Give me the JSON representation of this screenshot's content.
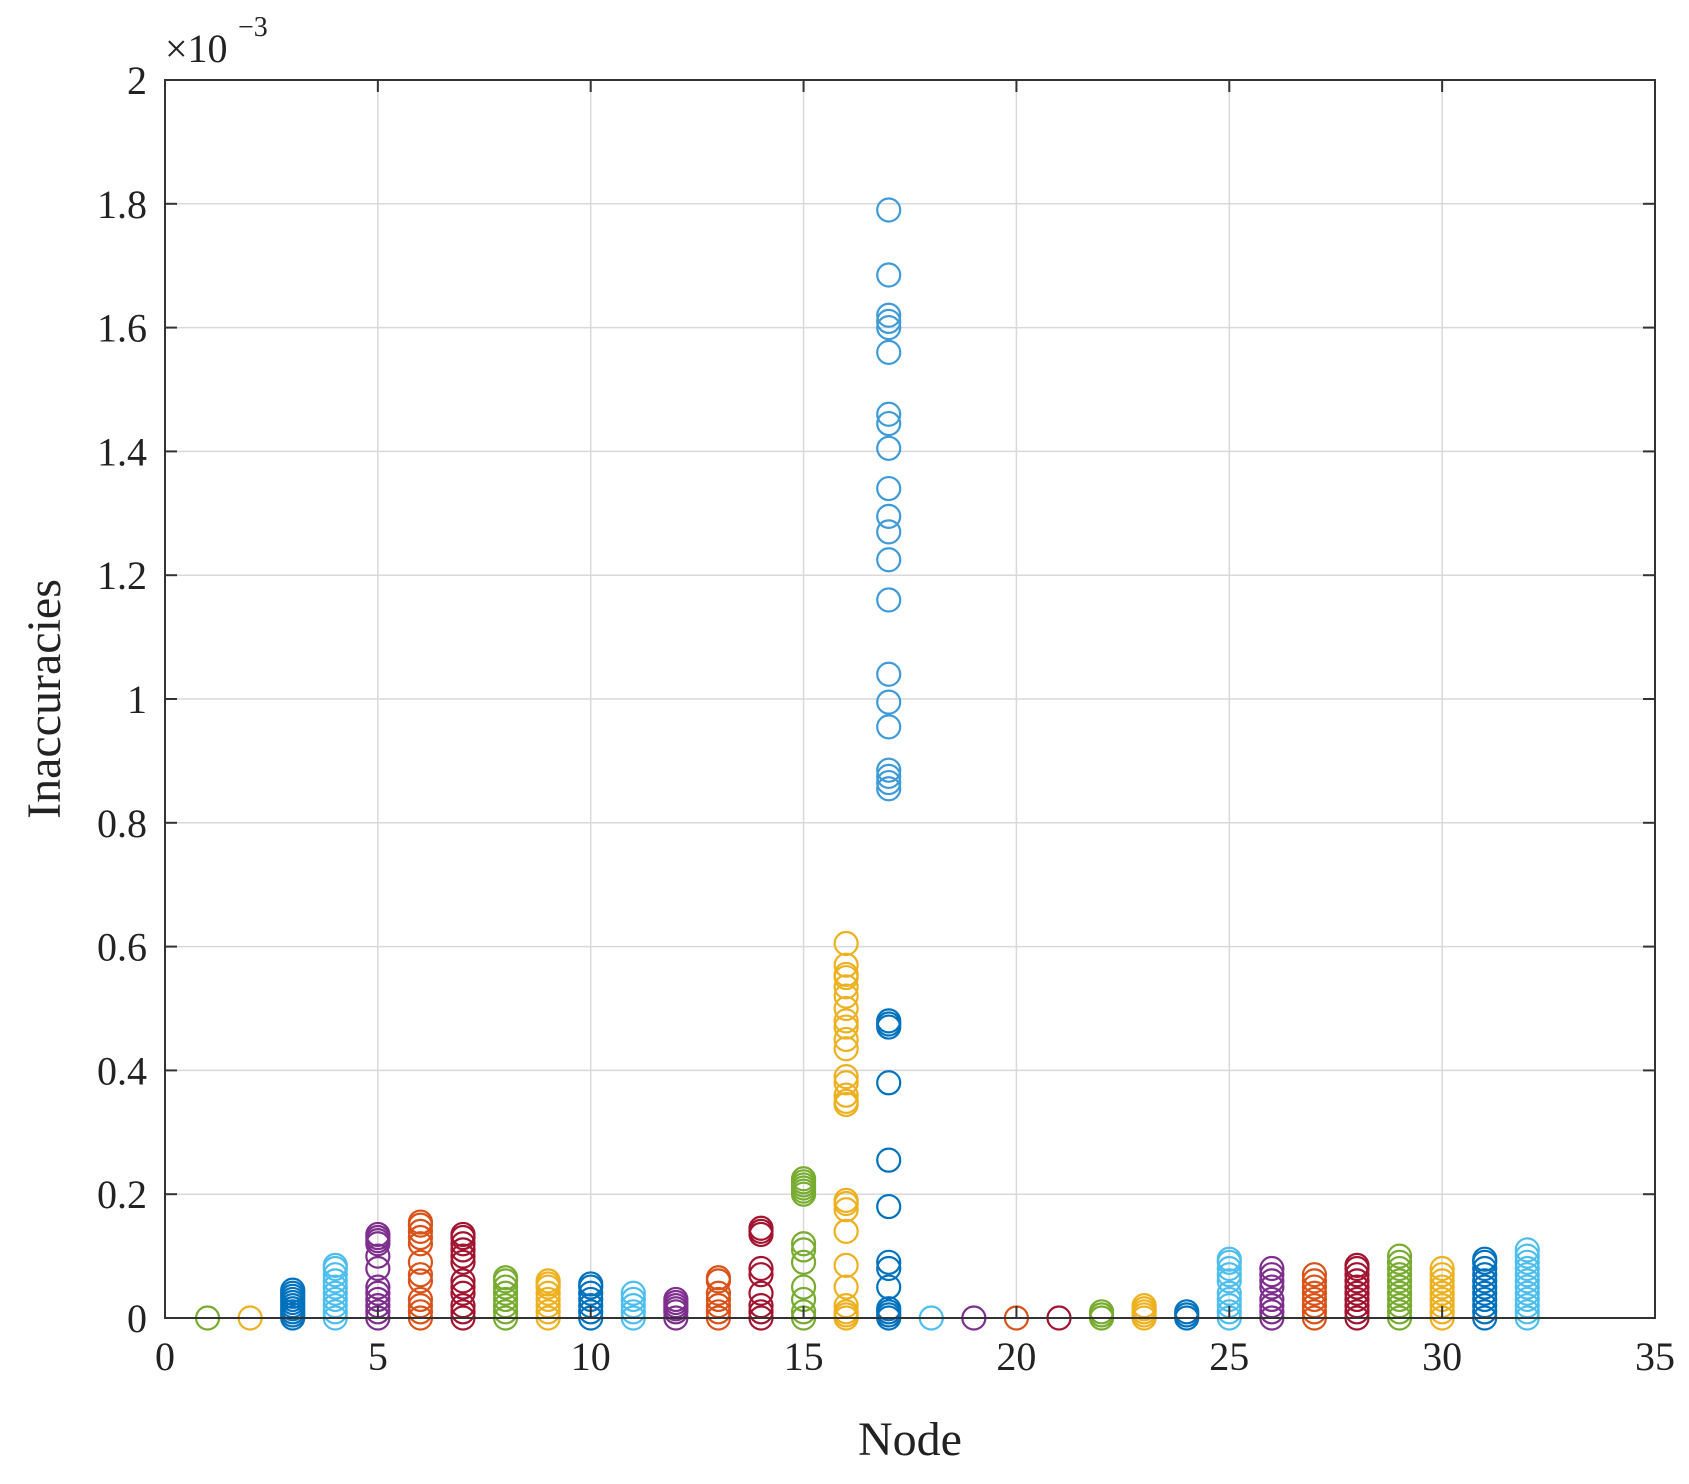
{
  "chart_data": {
    "type": "scatter",
    "title": "",
    "xlabel": "Node",
    "ylabel": "Inaccuracies",
    "y_exponent_base": "×10",
    "y_exponent_power": "−3",
    "xlim": [
      0,
      35
    ],
    "ylim": [
      0,
      2
    ],
    "xticks": [
      0,
      5,
      10,
      15,
      20,
      25,
      30,
      35
    ],
    "xtick_labels": [
      "0",
      "5",
      "10",
      "15",
      "20",
      "25",
      "30",
      "35"
    ],
    "yticks": [
      0,
      0.2,
      0.4,
      0.6,
      0.8,
      1,
      1.2,
      1.4,
      1.6,
      1.8,
      2
    ],
    "ytick_labels": [
      "0",
      "0.2",
      "0.4",
      "0.6",
      "0.8",
      "1",
      "1.2",
      "1.4",
      "1.6",
      "1.8",
      "2"
    ],
    "grid": true,
    "marker": "open-circle",
    "series": [
      {
        "node": 1,
        "color": "#77ac30",
        "values": [
          0
        ]
      },
      {
        "node": 2,
        "color": "#edb120",
        "values": [
          0
        ]
      },
      {
        "node": 3,
        "color": "#0072bd",
        "values": [
          0,
          0.005,
          0.01,
          0.015,
          0.02,
          0.025,
          0.03,
          0.035,
          0.04,
          0.045
        ]
      },
      {
        "node": 4,
        "color": "#4dbeee",
        "values": [
          0,
          0.01,
          0.02,
          0.03,
          0.04,
          0.05,
          0.06,
          0.07,
          0.08,
          0.085
        ]
      },
      {
        "node": 5,
        "color": "#7e2f8e",
        "values": [
          0,
          0.01,
          0.02,
          0.03,
          0.04,
          0.05,
          0.08,
          0.1,
          0.12,
          0.125,
          0.13,
          0.135
        ]
      },
      {
        "node": 6,
        "color": "#d95319",
        "values": [
          0,
          0.01,
          0.02,
          0.03,
          0.06,
          0.07,
          0.09,
          0.12,
          0.13,
          0.14,
          0.15,
          0.155
        ]
      },
      {
        "node": 7,
        "color": "#a2142f",
        "values": [
          0,
          0.01,
          0.02,
          0.04,
          0.05,
          0.06,
          0.09,
          0.1,
          0.11,
          0.12,
          0.13,
          0.135
        ]
      },
      {
        "node": 8,
        "color": "#77ac30",
        "values": [
          0,
          0.01,
          0.02,
          0.03,
          0.04,
          0.05,
          0.06,
          0.065
        ]
      },
      {
        "node": 9,
        "color": "#edb120",
        "values": [
          0,
          0.01,
          0.02,
          0.03,
          0.04,
          0.05,
          0.055,
          0.06
        ]
      },
      {
        "node": 10,
        "color": "#0072bd",
        "values": [
          0,
          0.01,
          0.02,
          0.03,
          0.04,
          0.05,
          0.055
        ]
      },
      {
        "node": 11,
        "color": "#4dbeee",
        "values": [
          0,
          0.01,
          0.02,
          0.03,
          0.04
        ]
      },
      {
        "node": 12,
        "color": "#7e2f8e",
        "values": [
          0,
          0.01,
          0.015,
          0.02,
          0.025,
          0.03
        ]
      },
      {
        "node": 13,
        "color": "#d95319",
        "values": [
          0,
          0.01,
          0.02,
          0.03,
          0.04,
          0.06,
          0.065
        ]
      },
      {
        "node": 14,
        "color": "#a2142f",
        "values": [
          0,
          0.01,
          0.02,
          0.04,
          0.07,
          0.08,
          0.135,
          0.14,
          0.145
        ]
      },
      {
        "node": 15,
        "color": "#77ac30",
        "values": [
          0,
          0.01,
          0.03,
          0.05,
          0.09,
          0.11,
          0.12,
          0.2,
          0.205,
          0.21,
          0.215,
          0.22,
          0.225
        ]
      },
      {
        "node": 16,
        "color": "#edb120",
        "values": [
          0,
          0.005,
          0.01,
          0.02,
          0.05,
          0.085,
          0.14,
          0.175,
          0.185,
          0.19,
          0.345,
          0.35,
          0.36,
          0.38,
          0.39,
          0.435,
          0.45,
          0.47,
          0.48,
          0.5,
          0.52,
          0.535,
          0.55,
          0.555,
          0.57,
          0.605
        ]
      },
      {
        "node": 17,
        "color": "#0072bd",
        "values": [
          0,
          0.005,
          0.01,
          0.015,
          0.05,
          0.08,
          0.09,
          0.18,
          0.255,
          0.38,
          0.47,
          0.475,
          0.48
        ]
      },
      {
        "node": 17,
        "color": "#3e9bd8",
        "values": [
          0.855,
          0.865,
          0.875,
          0.885,
          0.955,
          0.995,
          1.04,
          1.16,
          1.225,
          1.27,
          1.295,
          1.34,
          1.405,
          1.445,
          1.46,
          1.56,
          1.6,
          1.61,
          1.62,
          1.685,
          1.79
        ]
      },
      {
        "node": 18,
        "color": "#4dbeee",
        "values": [
          0
        ]
      },
      {
        "node": 19,
        "color": "#7e2f8e",
        "values": [
          0
        ]
      },
      {
        "node": 20,
        "color": "#d95319",
        "values": [
          0
        ]
      },
      {
        "node": 21,
        "color": "#a2142f",
        "values": [
          0
        ]
      },
      {
        "node": 22,
        "color": "#77ac30",
        "values": [
          0,
          0.005,
          0.01
        ]
      },
      {
        "node": 23,
        "color": "#edb120",
        "values": [
          0,
          0.005,
          0.01,
          0.015,
          0.02
        ]
      },
      {
        "node": 24,
        "color": "#0072bd",
        "values": [
          0,
          0.005,
          0.01
        ]
      },
      {
        "node": 25,
        "color": "#4dbeee",
        "values": [
          0,
          0.01,
          0.02,
          0.03,
          0.04,
          0.06,
          0.07,
          0.08,
          0.09,
          0.095
        ]
      },
      {
        "node": 26,
        "color": "#7e2f8e",
        "values": [
          0,
          0.01,
          0.02,
          0.03,
          0.05,
          0.06,
          0.07,
          0.08
        ]
      },
      {
        "node": 27,
        "color": "#d95319",
        "values": [
          0,
          0.01,
          0.02,
          0.03,
          0.04,
          0.05,
          0.06,
          0.07
        ]
      },
      {
        "node": 28,
        "color": "#a2142f",
        "values": [
          0,
          0.01,
          0.02,
          0.03,
          0.04,
          0.05,
          0.06,
          0.07,
          0.08,
          0.085
        ]
      },
      {
        "node": 29,
        "color": "#77ac30",
        "values": [
          0,
          0.01,
          0.02,
          0.03,
          0.04,
          0.05,
          0.06,
          0.07,
          0.08,
          0.09,
          0.1
        ]
      },
      {
        "node": 30,
        "color": "#edb120",
        "values": [
          0,
          0.01,
          0.02,
          0.03,
          0.04,
          0.05,
          0.06,
          0.07,
          0.08
        ]
      },
      {
        "node": 31,
        "color": "#0072bd",
        "values": [
          0,
          0.01,
          0.02,
          0.03,
          0.04,
          0.05,
          0.06,
          0.07,
          0.08,
          0.09,
          0.095
        ]
      },
      {
        "node": 32,
        "color": "#4dbeee",
        "values": [
          0,
          0.01,
          0.02,
          0.03,
          0.04,
          0.05,
          0.06,
          0.07,
          0.08,
          0.09,
          0.1,
          0.11
        ]
      }
    ]
  }
}
